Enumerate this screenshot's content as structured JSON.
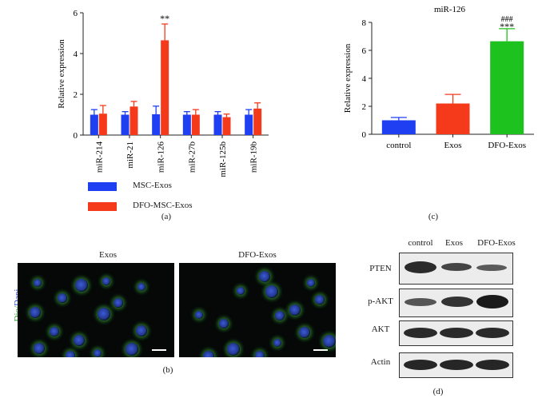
{
  "panel_a": {
    "label": "(a)",
    "significance": "**",
    "legend": [
      {
        "label": "MSC-Exos",
        "color": "#1f3ff2"
      },
      {
        "label": "DFO-MSC-Exos",
        "color": "#f53a1b"
      }
    ]
  },
  "panel_b": {
    "label": "(b)",
    "titles": [
      "Exos",
      "DFO-Exos"
    ],
    "ylabel_green": "Dio",
    "ylabel_sep": "/",
    "ylabel_blue": "Dapi"
  },
  "panel_c": {
    "label": "(c)",
    "sig_top": "###",
    "sig_bottom": "***"
  },
  "panel_d": {
    "label": "(d)",
    "columns": [
      "control",
      "Exos",
      "DFO-Exos"
    ],
    "rows": [
      "PTEN",
      "p-AKT",
      "AKT",
      "Actin"
    ]
  },
  "chart_data": [
    {
      "type": "bar",
      "categories": [
        "miR-214",
        "miR-21",
        "miR-126",
        "miR-27b",
        "miR-125b",
        "miR-19b"
      ],
      "series": [
        {
          "name": "MSC-Exos",
          "values": [
            1.0,
            1.0,
            1.02,
            1.0,
            1.0,
            1.0
          ],
          "errors": [
            0.25,
            0.15,
            0.4,
            0.15,
            0.15,
            0.25
          ],
          "color": "#1f3ff2"
        },
        {
          "name": "DFO-MSC-Exos",
          "values": [
            1.05,
            1.4,
            4.65,
            1.0,
            0.88,
            1.3
          ],
          "errors": [
            0.4,
            0.25,
            0.8,
            0.25,
            0.15,
            0.28
          ],
          "color": "#f53a1b"
        }
      ],
      "title": "",
      "xlabel": "",
      "ylabel": "Relative expression",
      "ylim": [
        0,
        6
      ],
      "yticks": [
        0,
        2,
        4,
        6
      ],
      "legend_position": "bottom-left"
    },
    {
      "type": "bar",
      "categories": [
        "control",
        "Exos",
        "DFO-Exos"
      ],
      "values": [
        1.0,
        2.2,
        6.65
      ],
      "errors": [
        0.2,
        0.65,
        0.9
      ],
      "colors": [
        "#1f3ff2",
        "#f53a1b",
        "#1ec21e"
      ],
      "title": "miR-126",
      "xlabel": "",
      "ylabel": "Relative expression",
      "ylim": [
        0,
        8
      ],
      "yticks": [
        0,
        2,
        4,
        6,
        8
      ]
    }
  ]
}
